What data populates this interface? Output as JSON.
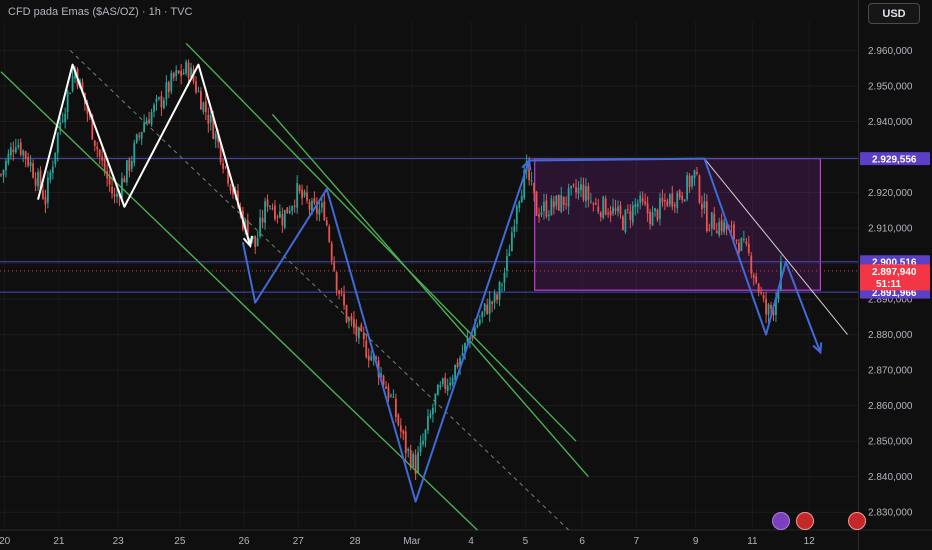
{
  "header": {
    "title": "CFD pada Emas ($AS/OZ) · 1h · TVC",
    "currency": "USD"
  },
  "colors": {
    "background": "#0f0f0f",
    "up_candle": "#26a69a",
    "down_candle": "#ef5350",
    "channel": "#4caf50",
    "zigzag_blue": "#3f6ad8",
    "zigzag_white": "#ffffff",
    "range_box": "#9c27b0",
    "level_line": "#4a4ac0",
    "price_tag": "#f23645",
    "level_tag": "#5b3fc4"
  },
  "chart_data": {
    "type": "candlestick",
    "ylim": [
      2825000,
      2968000
    ],
    "y_ticks": [
      "2.830,000",
      "2.840,000",
      "2.850,000",
      "2.860,000",
      "2.870,000",
      "2.880,000",
      "2.890,000",
      "2.900,000",
      "2.910,000",
      "2.920,000",
      "2.930,000",
      "2.940,000",
      "2.950,000",
      "2.960,000"
    ],
    "y_tick_values": [
      2830000,
      2840000,
      2850000,
      2860000,
      2870000,
      2880000,
      2890000,
      2900000,
      2910000,
      2920000,
      2930000,
      2940000,
      2950000,
      2960000
    ],
    "x_tick_labels": [
      "20",
      "21",
      "23",
      "25",
      "26",
      "27",
      "28",
      "Mar",
      "4",
      "5",
      "6",
      "7",
      "9",
      "11",
      "12"
    ],
    "x_tick_index": [
      12,
      34,
      58,
      83,
      109,
      131,
      154,
      177,
      201,
      223,
      246,
      268,
      292,
      315,
      338
    ],
    "bar_count": 316,
    "close_path": [
      [
        0,
        2925000
      ],
      [
        6,
        2935000
      ],
      [
        12,
        2928000
      ],
      [
        18,
        2918000
      ],
      [
        24,
        2940000
      ],
      [
        30,
        2955000
      ],
      [
        34,
        2945000
      ],
      [
        40,
        2930000
      ],
      [
        46,
        2918000
      ],
      [
        52,
        2928000
      ],
      [
        58,
        2940000
      ],
      [
        64,
        2945000
      ],
      [
        70,
        2952000
      ],
      [
        76,
        2955000
      ],
      [
        80,
        2948000
      ],
      [
        86,
        2938000
      ],
      [
        92,
        2925000
      ],
      [
        98,
        2912000
      ],
      [
        103,
        2905000
      ],
      [
        108,
        2918000
      ],
      [
        114,
        2913000
      ],
      [
        120,
        2920000
      ],
      [
        126,
        2915000
      ],
      [
        131,
        2915000
      ],
      [
        136,
        2895000
      ],
      [
        140,
        2885000
      ],
      [
        146,
        2878000
      ],
      [
        152,
        2872000
      ],
      [
        158,
        2862000
      ],
      [
        164,
        2848000
      ],
      [
        168,
        2843000
      ],
      [
        172,
        2852000
      ],
      [
        176,
        2862000
      ],
      [
        182,
        2868000
      ],
      [
        187,
        2875000
      ],
      [
        192,
        2882000
      ],
      [
        197,
        2888000
      ],
      [
        201,
        2890000
      ],
      [
        205,
        2900000
      ],
      [
        209,
        2918000
      ],
      [
        213,
        2926000
      ],
      [
        217,
        2915000
      ],
      [
        223,
        2916000
      ],
      [
        229,
        2918000
      ],
      [
        235,
        2921000
      ],
      [
        241,
        2916000
      ],
      [
        246,
        2916000
      ],
      [
        252,
        2912000
      ],
      [
        258,
        2917000
      ],
      [
        264,
        2913000
      ],
      [
        270,
        2918000
      ],
      [
        276,
        2920000
      ],
      [
        281,
        2925000
      ],
      [
        286,
        2912000
      ],
      [
        292,
        2911000
      ],
      [
        298,
        2907000
      ],
      [
        303,
        2902000
      ],
      [
        307,
        2893000
      ],
      [
        310,
        2886000
      ],
      [
        313,
        2888000
      ],
      [
        316,
        2897940
      ]
    ],
    "levels": [
      {
        "value": 2929556,
        "label": "2.929,556"
      },
      {
        "value": 2900516,
        "label": "2.900,516"
      },
      {
        "value": 2891966,
        "label": "2.891,966"
      }
    ],
    "current_price": {
      "value": 2897940,
      "label": "2.897,940",
      "countdown": "51:11"
    },
    "range_box": {
      "x0": 213,
      "x1": 332,
      "y0": 2892500,
      "y1": 2929556
    },
    "channel_lines": [
      [
        [
          0,
          2954000
        ],
        [
          193,
          2825000
        ]
      ],
      [
        [
          75,
          2962000
        ],
        [
          233,
          2850000
        ]
      ],
      [
        [
          110,
          2942000
        ],
        [
          238,
          2840000
        ]
      ]
    ],
    "dashed_midline": [
      [
        28,
        2960000
      ],
      [
        230,
        2825000
      ]
    ],
    "resistance_line": [
      [
        285,
        2929556
      ],
      [
        343,
        2880000
      ]
    ],
    "zigzag_white": [
      [
        15,
        2918000
      ],
      [
        29,
        2956000
      ],
      [
        50,
        2916000
      ],
      [
        80,
        2956000
      ],
      [
        101,
        2905000
      ]
    ],
    "zigzag_blue": [
      [
        98,
        2906000
      ],
      [
        103,
        2889000
      ],
      [
        132,
        2921000
      ],
      [
        168,
        2833000
      ],
      [
        214,
        2929000
      ],
      [
        285,
        2929556
      ],
      [
        310,
        2880000
      ],
      [
        318,
        2900516
      ],
      [
        332,
        2875000
      ]
    ]
  }
}
